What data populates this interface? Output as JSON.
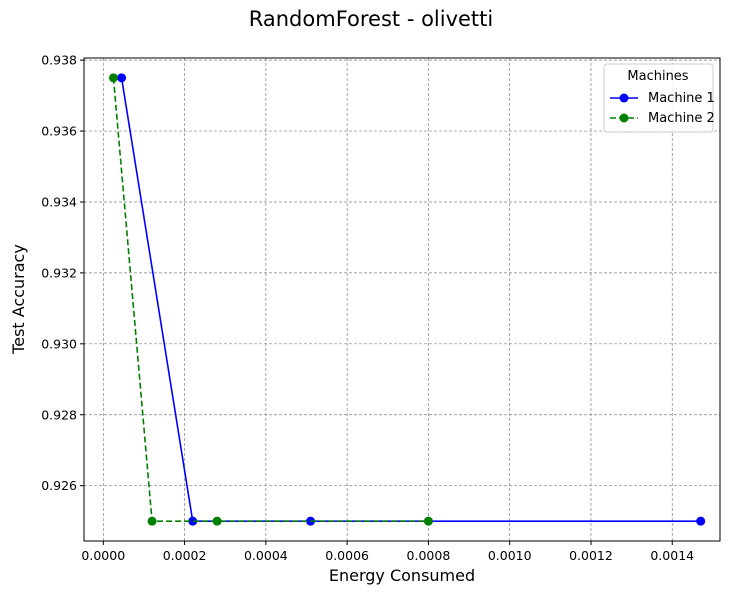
{
  "chart_data": {
    "type": "line",
    "title": "RandomForest - olivetti",
    "xlabel": "Energy Consumed",
    "ylabel": "Test Accuracy",
    "xlim": [
      -4.75e-05,
      0.0015175
    ],
    "ylim": [
      0.92444,
      0.93806
    ],
    "xticks": [
      "0.0000",
      "0.0002",
      "0.0004",
      "0.0006",
      "0.0008",
      "0.0010",
      "0.0012",
      "0.0014"
    ],
    "xtick_values": [
      0.0,
      0.0002,
      0.0004,
      0.0006,
      0.0008,
      0.001,
      0.0012,
      0.0014
    ],
    "yticks": [
      "0.926",
      "0.928",
      "0.930",
      "0.932",
      "0.934",
      "0.936",
      "0.938"
    ],
    "ytick_values": [
      0.926,
      0.928,
      0.93,
      0.932,
      0.934,
      0.936,
      0.938
    ],
    "grid": true,
    "legend": {
      "title": "Machines",
      "position": "top-right"
    },
    "series": [
      {
        "name": "Machine 1",
        "color": "#0000ff",
        "dash": "solid",
        "points": [
          {
            "x": 4.5e-05,
            "y": 0.9375
          },
          {
            "x": 0.00022,
            "y": 0.925
          },
          {
            "x": 0.00051,
            "y": 0.925
          },
          {
            "x": 0.00147,
            "y": 0.925
          }
        ]
      },
      {
        "name": "Machine 2",
        "color": "#008000",
        "dash": "dashed",
        "points": [
          {
            "x": 2.5e-05,
            "y": 0.9375
          },
          {
            "x": 0.00012,
            "y": 0.925
          },
          {
            "x": 0.00028,
            "y": 0.925
          },
          {
            "x": 0.0008,
            "y": 0.925
          }
        ]
      }
    ]
  }
}
